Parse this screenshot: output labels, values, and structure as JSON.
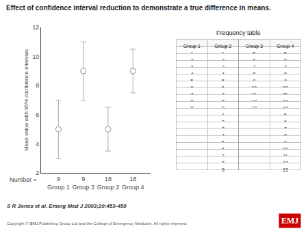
{
  "chart_data": [
    {
      "type": "scatter",
      "title": "Effect of confidence interval reduction to demonstrate a true difference in means.",
      "ylabel": "Mean value with 95% confidence intervals",
      "categories": [
        "Group 1",
        "Group 3",
        "Group 2",
        "Group 4"
      ],
      "values": [
        5,
        9,
        5,
        9
      ],
      "ci_lower": [
        3,
        7,
        3.5,
        7.5
      ],
      "ci_upper": [
        7,
        11,
        6.5,
        10.5
      ],
      "n_label": "Number =",
      "n": [
        9,
        9,
        18,
        18
      ],
      "color": "#aaaaaa",
      "marker": "circle",
      "ylim": [
        2,
        12
      ],
      "yticks": [
        2,
        4,
        6,
        8,
        10,
        12
      ],
      "grid": false,
      "annotations": [
        "S R Jones et al. Emerg Med J 2003;20:453-458",
        "Copyright © BMJ Publishing Group Ltd and the College of Emergency Medicine. All rights reserved.",
        "EMJ"
      ]
    },
    {
      "type": "table",
      "title": "Frequency table",
      "columns": [
        "Group 1",
        "Group 2",
        "Group 3",
        "Group 4"
      ],
      "cells": [
        [
          "1",
          "2",
          "3",
          "4",
          "5",
          "6",
          "7",
          "8",
          "9",
          null,
          null,
          null,
          null,
          null,
          null,
          null,
          null,
          null
        ],
        [
          "1",
          "2",
          "3",
          "4",
          "5",
          "6",
          "7",
          "8",
          "9",
          "1",
          "2",
          "3",
          "4",
          "5",
          "6",
          "7",
          "8",
          "9"
        ],
        [
          "5",
          "6",
          "7",
          "8",
          "9",
          "10",
          "11",
          "12",
          "13",
          null,
          null,
          null,
          null,
          null,
          null,
          null,
          null,
          null
        ],
        [
          "5",
          "6",
          "7",
          "8",
          "9",
          "10",
          "11",
          "12",
          "13",
          "5",
          "6",
          "7",
          "8",
          "9",
          "10",
          "11",
          "12",
          "13"
        ]
      ]
    }
  ]
}
